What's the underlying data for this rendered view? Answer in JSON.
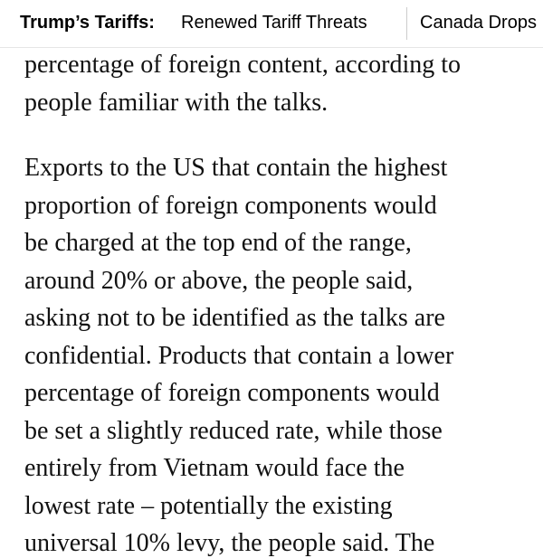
{
  "nav": {
    "label": "Trump’s Tariffs:",
    "items": [
      "Renewed Tariff Threats",
      "Canada Drops"
    ]
  },
  "article": {
    "lines_top": [
      "percentage of foreign content, according to",
      "people familiar with the talks."
    ],
    "lines_main": [
      "Exports to the US that contain the highest",
      "proportion of foreign components would",
      "be charged at the top end of the range,",
      "around 20% or above, the people said,",
      "asking not to be identified as the talks are",
      "confidential. Products that contain a lower",
      "percentage of foreign components would",
      "be set a slightly reduced rate, while those",
      "entirely from Vietnam would face the",
      "lowest rate – potentially the existing",
      "universal 10% levy, the people said. The"
    ]
  }
}
